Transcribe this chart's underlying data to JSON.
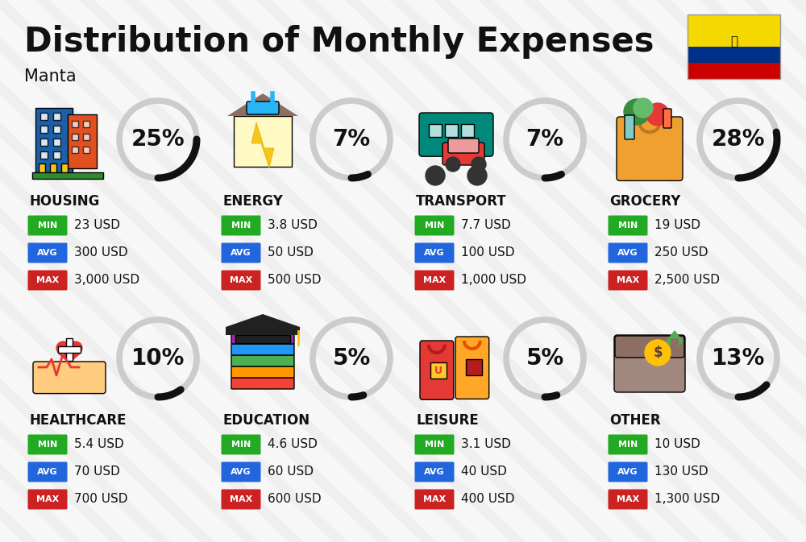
{
  "title": "Distribution of Monthly Expenses",
  "subtitle": "Manta",
  "background_color": "#efefef",
  "categories": [
    {
      "name": "HOUSING",
      "percent": 25,
      "emoji": "🏙",
      "row": 0,
      "col": 0,
      "min": "23 USD",
      "avg": "300 USD",
      "max": "3,000 USD"
    },
    {
      "name": "ENERGY",
      "percent": 7,
      "emoji": "⚡",
      "row": 0,
      "col": 1,
      "min": "3.8 USD",
      "avg": "50 USD",
      "max": "500 USD"
    },
    {
      "name": "TRANSPORT",
      "percent": 7,
      "emoji": "🚌",
      "row": 0,
      "col": 2,
      "min": "7.7 USD",
      "avg": "100 USD",
      "max": "1,000 USD"
    },
    {
      "name": "GROCERY",
      "percent": 28,
      "emoji": "🛒",
      "row": 0,
      "col": 3,
      "min": "19 USD",
      "avg": "250 USD",
      "max": "2,500 USD"
    },
    {
      "name": "HEALTHCARE",
      "percent": 10,
      "emoji": "❤",
      "row": 1,
      "col": 0,
      "min": "5.4 USD",
      "avg": "70 USD",
      "max": "700 USD"
    },
    {
      "name": "EDUCATION",
      "percent": 5,
      "emoji": "📚",
      "row": 1,
      "col": 1,
      "min": "4.6 USD",
      "avg": "60 USD",
      "max": "600 USD"
    },
    {
      "name": "LEISURE",
      "percent": 5,
      "emoji": "🛍",
      "row": 1,
      "col": 2,
      "min": "3.1 USD",
      "avg": "40 USD",
      "max": "400 USD"
    },
    {
      "name": "OTHER",
      "percent": 13,
      "emoji": "👜",
      "row": 1,
      "col": 3,
      "min": "10 USD",
      "avg": "130 USD",
      "max": "1,300 USD"
    }
  ],
  "min_color": "#22aa22",
  "avg_color": "#2266dd",
  "max_color": "#cc2222",
  "text_color": "#111111",
  "donut_bg": "#cccccc",
  "donut_fg": "#111111",
  "stripe_color": "#ffffff",
  "flag_yellow": "#f5d800",
  "flag_blue": "#003087",
  "flag_red": "#cc0000",
  "title_fontsize": 30,
  "subtitle_fontsize": 15,
  "cat_fontsize": 12,
  "badge_fontsize": 8,
  "val_fontsize": 11,
  "pct_fontsize": 20
}
